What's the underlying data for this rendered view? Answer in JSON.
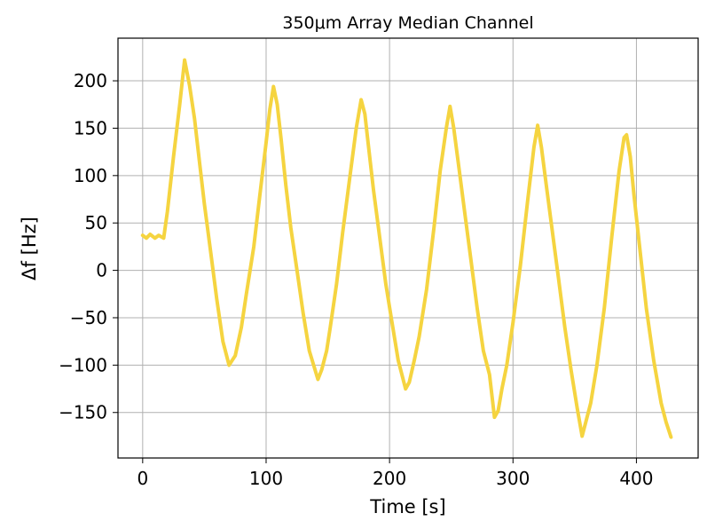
{
  "chart_data": {
    "type": "line",
    "title": "350μm Array Median Channel",
    "xlabel": "Time [s]",
    "ylabel": "Δf [Hz]",
    "xlim": [
      -20,
      450
    ],
    "ylim": [
      -198,
      245
    ],
    "xticks": [
      0,
      100,
      200,
      300,
      400
    ],
    "yticks": [
      -150,
      -100,
      -50,
      0,
      50,
      100,
      150,
      200
    ],
    "grid": true,
    "series": [
      {
        "color": "#f5d440",
        "x": [
          0,
          3,
          6,
          10,
          13,
          17,
          20,
          25,
          30,
          34,
          38,
          42,
          46,
          50,
          55,
          60,
          65,
          70,
          75,
          80,
          84,
          90,
          95,
          100,
          103,
          106,
          109,
          112,
          116,
          120,
          125,
          130,
          135,
          142,
          145,
          149,
          152,
          157,
          162,
          168,
          173,
          177,
          180,
          183,
          187,
          192,
          197,
          202,
          207,
          213,
          216,
          220,
          224,
          230,
          236,
          241,
          246,
          249,
          252,
          256,
          261,
          266,
          271,
          276,
          281,
          285,
          288,
          291,
          295,
          300,
          306,
          312,
          317,
          320,
          323,
          327,
          332,
          337,
          342,
          347,
          352,
          356,
          359,
          363,
          368,
          374,
          380,
          386,
          390,
          392,
          395,
          398,
          403,
          408,
          414,
          420,
          424,
          428
        ],
        "y": [
          37,
          34,
          38,
          34,
          37,
          34,
          62,
          120,
          175,
          222,
          195,
          160,
          115,
          70,
          20,
          -30,
          -75,
          -100,
          -90,
          -60,
          -25,
          25,
          80,
          135,
          170,
          194,
          175,
          140,
          90,
          45,
          0,
          -45,
          -85,
          -115,
          -105,
          -85,
          -60,
          -15,
          40,
          100,
          150,
          180,
          165,
          130,
          85,
          35,
          -15,
          -55,
          -95,
          -125,
          -118,
          -95,
          -70,
          -20,
          45,
          105,
          150,
          173,
          150,
          110,
          60,
          10,
          -40,
          -85,
          -110,
          -155,
          -148,
          -125,
          -100,
          -55,
          5,
          75,
          130,
          153,
          130,
          90,
          40,
          -10,
          -60,
          -105,
          -145,
          -175,
          -160,
          -140,
          -100,
          -40,
          35,
          105,
          140,
          143,
          120,
          80,
          20,
          -40,
          -95,
          -140,
          -160,
          -176
        ]
      }
    ]
  }
}
